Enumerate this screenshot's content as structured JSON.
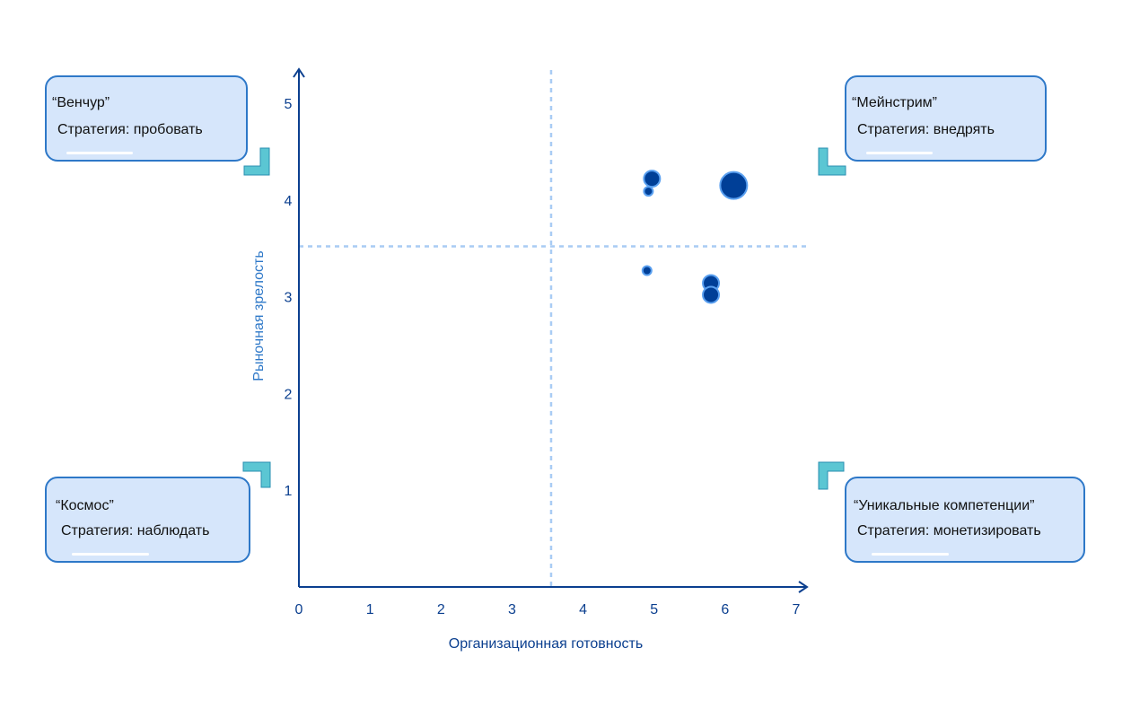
{
  "chart_data": {
    "type": "scatter",
    "xlabel": "Организационная готовность",
    "ylabel": "Рыночная зрелость",
    "xlim": [
      0,
      7
    ],
    "ylim": [
      0,
      5
    ],
    "xticks": [
      "0",
      "1",
      "2",
      "3",
      "4",
      "5",
      "6",
      "7"
    ],
    "yticks": [
      "1",
      "2",
      "3",
      "4",
      "5"
    ],
    "thresholds": {
      "x": 3.55,
      "y": 3.52
    },
    "points": [
      {
        "x": 4.97,
        "y": 4.22,
        "size": "medium"
      },
      {
        "x": 4.92,
        "y": 4.09,
        "size": "small"
      },
      {
        "x": 6.12,
        "y": 4.15,
        "size": "large"
      },
      {
        "x": 4.9,
        "y": 3.27,
        "size": "small"
      },
      {
        "x": 5.8,
        "y": 3.14,
        "size": "medium"
      },
      {
        "x": 5.8,
        "y": 3.02,
        "size": "medium"
      }
    ],
    "grid": false
  },
  "quadrants": {
    "top_left": {
      "title": "“Венчур”",
      "strategy": "Стратегия: пробовать"
    },
    "top_right": {
      "title": "“Мейнстрим”",
      "strategy": "Стратегия: внедрять"
    },
    "bottom_left": {
      "title": "“Космос”",
      "strategy": "Стратегия: наблюдать"
    },
    "bottom_right": {
      "title": "“Уникальные компетенции”",
      "strategy": "Стратегия: монетизировать"
    }
  },
  "colors": {
    "axis": "#0b3f8f",
    "point_fill": "#003f97",
    "point_stroke": "#5aa0f0",
    "threshold": "#a9ccf4",
    "box_fill": "#d6e6fb",
    "box_border": "#2e78c8",
    "corner": "#5bc6d3"
  }
}
